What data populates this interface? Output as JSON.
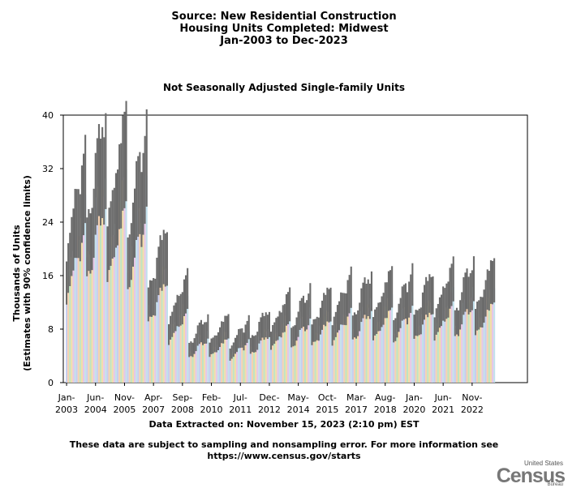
{
  "header": {
    "line1": "Source: New Residential Construction",
    "line2": "Housing Units Completed: Midwest",
    "line3": "Jan-2003 to Dec-2023"
  },
  "chart_data": {
    "type": "bar",
    "title": "Not Seasonally Adjusted Single-family Units",
    "ylabel_line1": "Thousands of Units",
    "ylabel_line2": "(Estimates with 90% confidence limits)",
    "xlabel": "",
    "ylim": [
      0,
      40
    ],
    "yticks": [
      0,
      8,
      16,
      24,
      32,
      40
    ],
    "start_month": "Jan-2003",
    "tick_labels": [
      {
        "month": "Jan",
        "year": "2003"
      },
      {
        "month": "Jun",
        "year": "2004"
      },
      {
        "month": "Nov",
        "year": "2005"
      },
      {
        "month": "Apr",
        "year": "2007"
      },
      {
        "month": "Sep",
        "year": "2008"
      },
      {
        "month": "Feb",
        "year": "2010"
      },
      {
        "month": "Jul",
        "year": "2011"
      },
      {
        "month": "Dec",
        "year": "2012"
      },
      {
        "month": "May",
        "year": "2014"
      },
      {
        "month": "Oct",
        "year": "2015"
      },
      {
        "month": "Mar",
        "year": "2017"
      },
      {
        "month": "Aug",
        "year": "2018"
      },
      {
        "month": "Jan",
        "year": "2020"
      },
      {
        "month": "Jun",
        "year": "2021"
      },
      {
        "month": "Nov",
        "year": "2022"
      }
    ],
    "annual_levels": [
      20.5,
      24.5,
      24.0,
      23.0,
      14.0,
      9.5,
      6.0,
      6.0,
      5.6,
      6.6,
      8.0,
      8.5,
      8.6,
      9.6,
      10.0,
      10.0,
      10.0,
      10.0,
      10.5,
      11.0,
      11.0
    ],
    "seasonal_factors": [
      0.72,
      0.78,
      0.8,
      0.86,
      0.9,
      1.02,
      1.06,
      1.12,
      1.08,
      1.18,
      1.2,
      1.28
    ],
    "ci_upper_ratio": 1.32,
    "ci_lower_ratio": 0.85,
    "bar_colors": [
      "#c6cdef",
      "#f5d0b0",
      "#bfe5bf",
      "#f3dca8",
      "#e6c6e6",
      "#c2e0ec"
    ],
    "ci_color": "#6b6b6b"
  },
  "footer": {
    "extracted": "Data Extracted on: November 15, 2023 (2:10 pm) EST",
    "disclaimer": "These data are subject to sampling and nonsampling error. For more information see",
    "url": "https://www.census.gov/starts"
  },
  "logo": {
    "small": "United States",
    "big": "Census",
    "tiny": "Bureau"
  }
}
